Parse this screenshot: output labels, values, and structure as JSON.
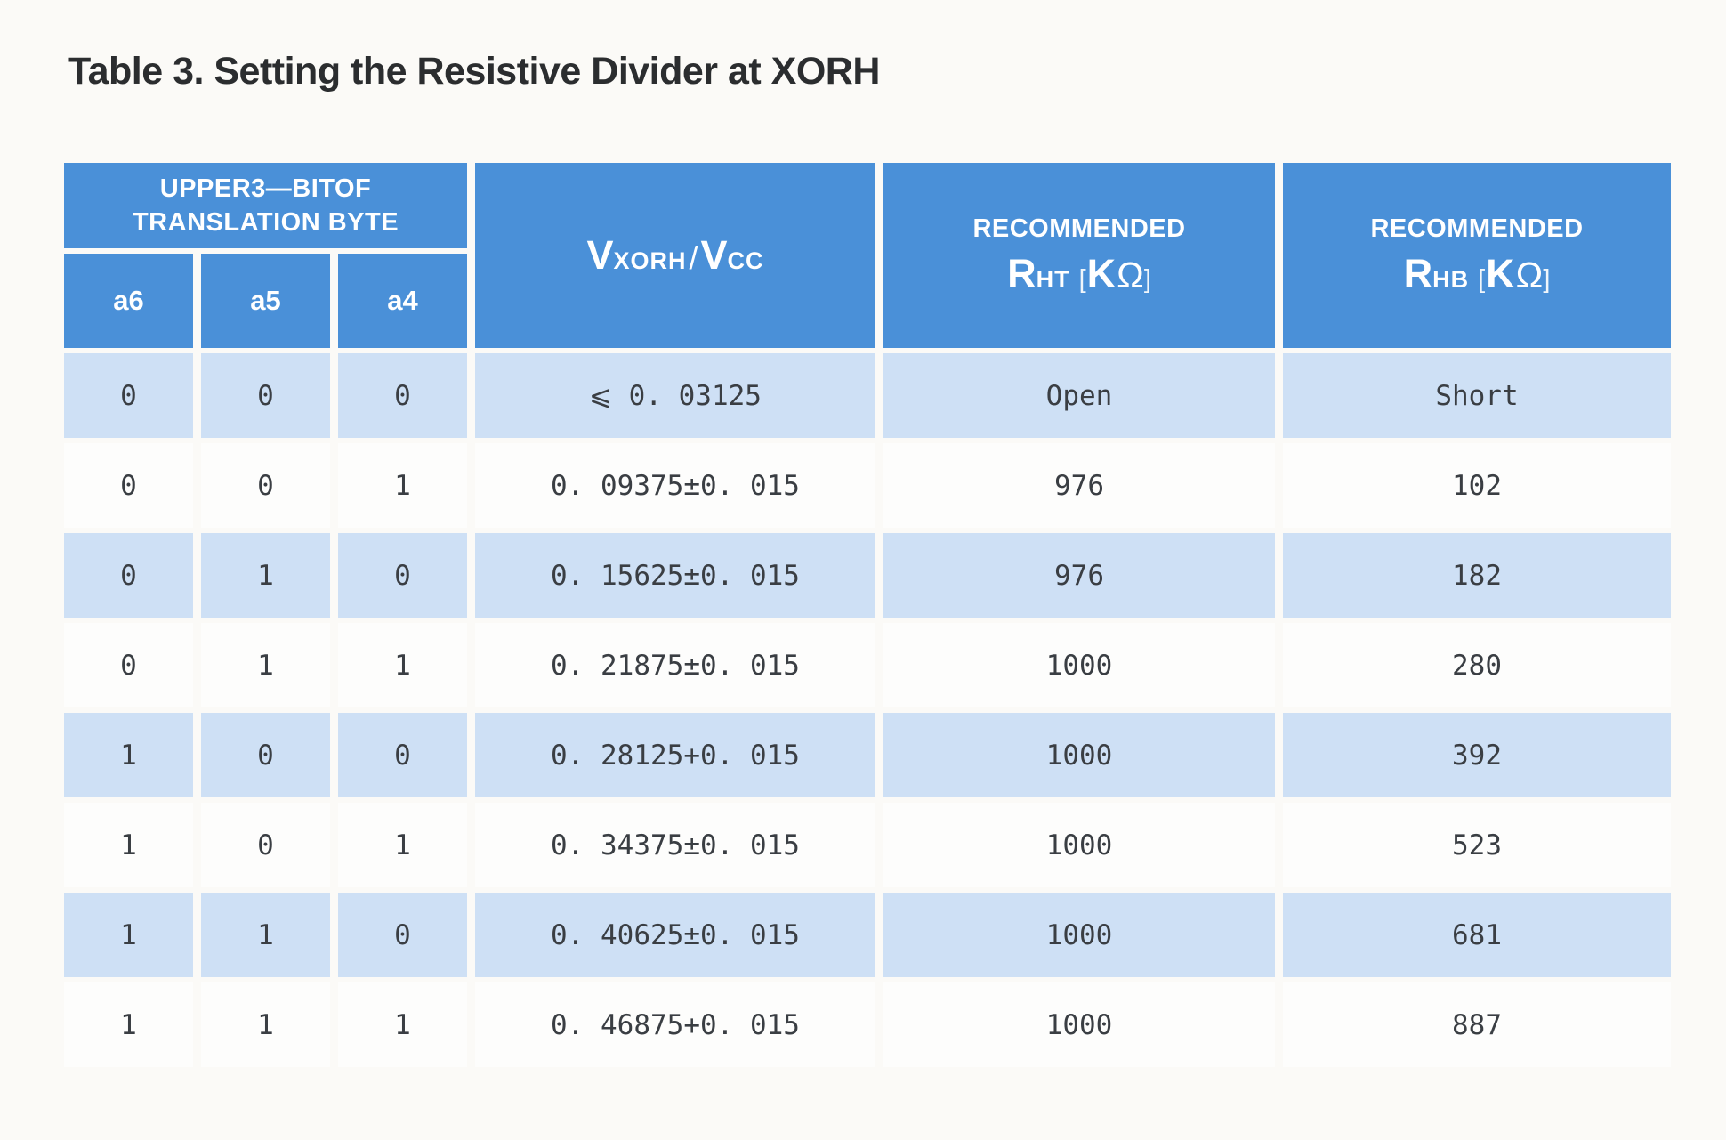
{
  "title": "Table 3. Setting the Resistive Divider at XORH",
  "table": {
    "columns_plain": [
      "a6",
      "a5",
      "a4",
      "VXORH/VCC",
      "RECOMMENDED RHT [KΩ]",
      "RECOMMENDED RHB [KΩ]"
    ],
    "header": {
      "group_line1": "UPPER3—BITOF",
      "group_line2": "TRANSLATION BYTE",
      "bits": [
        "a6",
        "a5",
        "a4"
      ],
      "v_col": {
        "v1": "V",
        "s1": "XORH",
        "slash": "/",
        "v2": "V",
        "s2": "CC"
      },
      "rht": {
        "label": "RECOMMENDED",
        "r": "R",
        "sub": "HT",
        "open": "[",
        "k": "K",
        "omega": "Ω",
        "close": "]"
      },
      "rhb": {
        "label": "RECOMMENDED",
        "r": "R",
        "sub": "HB",
        "open": "[",
        "k": "K",
        "omega": "Ω",
        "close": "]"
      }
    },
    "rows": [
      {
        "a6": "0",
        "a5": "0",
        "a4": "0",
        "v": "⩽ 0. 03125",
        "rht": "Open",
        "rhb": "Short"
      },
      {
        "a6": "0",
        "a5": "0",
        "a4": "1",
        "v": "0. 09375±0. 015",
        "rht": "976",
        "rhb": "102"
      },
      {
        "a6": "0",
        "a5": "1",
        "a4": "0",
        "v": "0. 15625±0. 015",
        "rht": "976",
        "rhb": "182"
      },
      {
        "a6": "0",
        "a5": "1",
        "a4": "1",
        "v": "0. 21875±0. 015",
        "rht": "1000",
        "rhb": "280"
      },
      {
        "a6": "1",
        "a5": "0",
        "a4": "0",
        "v": "0. 28125+0. 015",
        "rht": "1000",
        "rhb": "392"
      },
      {
        "a6": "1",
        "a5": "0",
        "a4": "1",
        "v": "0. 34375±0. 015",
        "rht": "1000",
        "rhb": "523"
      },
      {
        "a6": "1",
        "a5": "1",
        "a4": "0",
        "v": "0. 40625±0. 015",
        "rht": "1000",
        "rhb": "681"
      },
      {
        "a6": "1",
        "a5": "1",
        "a4": "1",
        "v": "0. 46875+0. 015",
        "rht": "1000",
        "rhb": "887"
      }
    ],
    "colors": {
      "header_blue": "#4a90d8",
      "row_blue": "#cee0f5",
      "row_white": "#fdfdfc",
      "background": "#fbfaf7",
      "text_dark": "#3a3e43",
      "title_text": "#2b2d2f"
    }
  }
}
